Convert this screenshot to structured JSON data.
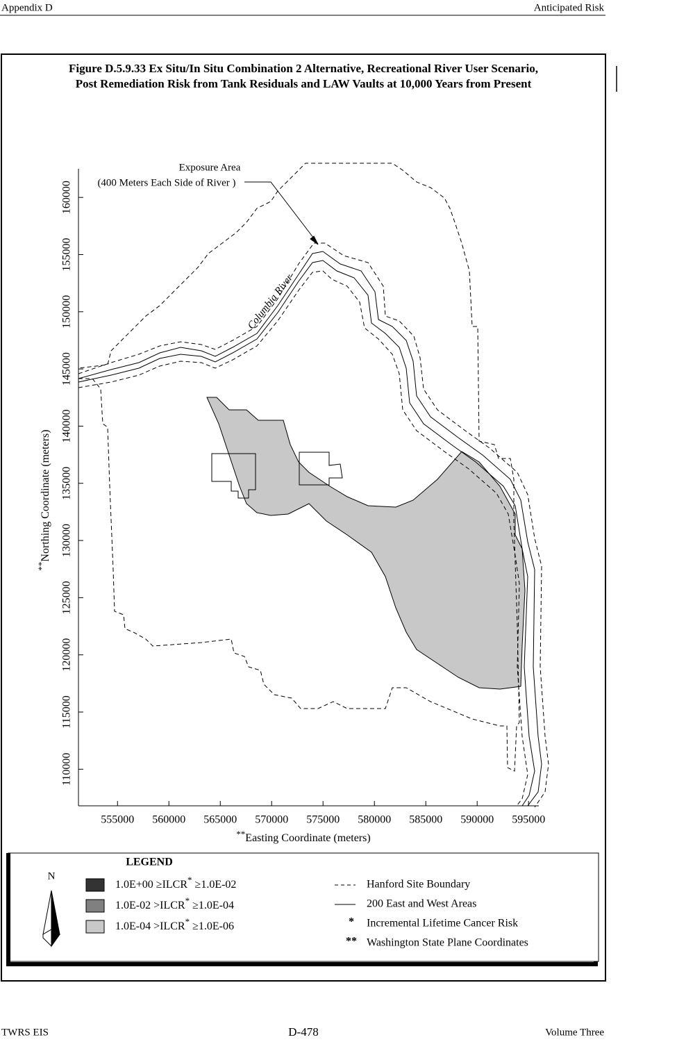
{
  "header": {
    "left": "Appendix D",
    "right": "Anticipated Risk"
  },
  "figure": {
    "title_line1": "Figure D.5.9.33  Ex Situ/In Situ Combination 2 Alternative, Recreational River User Scenario,",
    "title_line2": "Post Remediation Risk from Tank Residuals and LAW Vaults at 10,000 Years from Present",
    "annotation_line1": "Exposure Area",
    "annotation_line2": "(400 Meters Each Side of River )",
    "river_label": "Columbia River",
    "x_axis": {
      "marker": "**",
      "label": "Easting Coordinate (meters)"
    },
    "y_axis": {
      "marker": "**",
      "label": "Northing Coordinate (meters)"
    },
    "xlim": [
      551200,
      596000
    ],
    "ylim": [
      106800,
      162500
    ],
    "xticks": [
      555000,
      560000,
      565000,
      570000,
      575000,
      580000,
      585000,
      590000,
      595000
    ],
    "yticks": [
      110000,
      115000,
      120000,
      125000,
      130000,
      135000,
      140000,
      145000,
      150000,
      155000,
      160000
    ]
  },
  "legend": {
    "title": "LEGEND",
    "north": "N",
    "risk_items": [
      {
        "before": "1.0E+00  ≥ILCR",
        "star": "*",
        "after": "  ≥1.0E-02",
        "color": "#333333"
      },
      {
        "before": "1.0E-02  >ILCR",
        "star": "*",
        "after": "  ≥1.0E-04",
        "color": "#808080"
      },
      {
        "before": "1.0E-04  >ILCR",
        "star": "*",
        "after": "  ≥1.0E-06",
        "color": "#c8c8c8"
      }
    ],
    "line_items": [
      {
        "symbol": "",
        "label": "Hanford Site Boundary"
      },
      {
        "symbol": "",
        "label": "200 East and West Areas"
      },
      {
        "symbol": "*",
        "label": "Incremental Lifetime Cancer Risk"
      },
      {
        "symbol": "**",
        "label": "Washington State Plane Coordinates"
      }
    ]
  },
  "footer": {
    "left": "TWRS EIS",
    "center": "D-478",
    "right": "Volume Three"
  }
}
